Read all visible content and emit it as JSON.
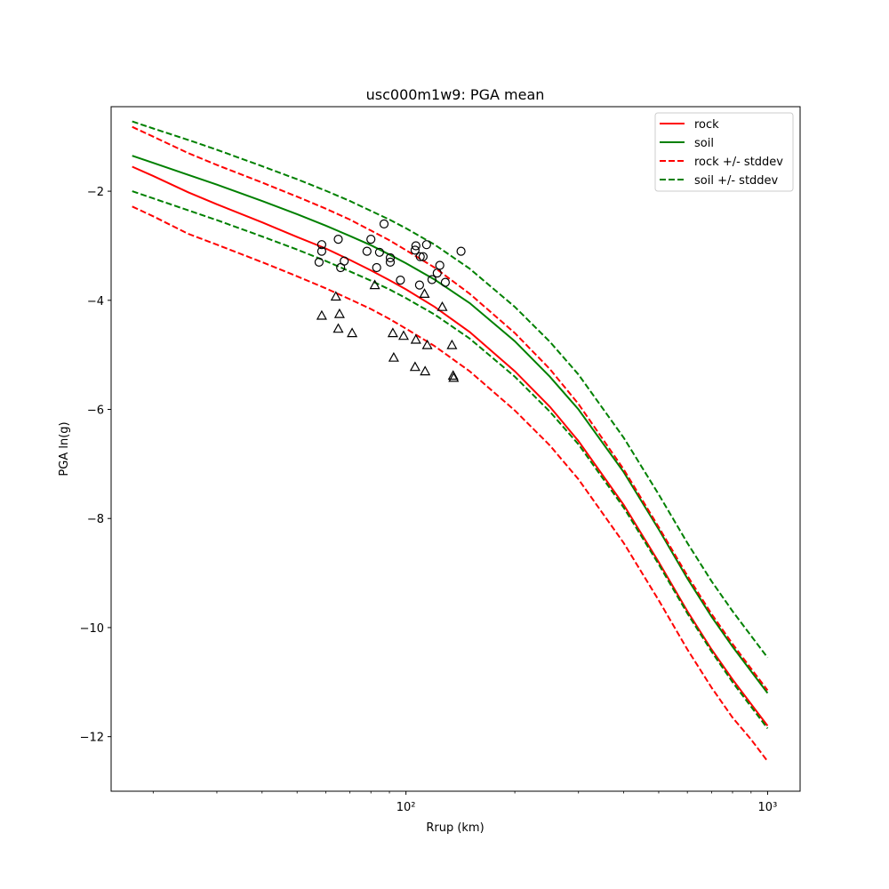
{
  "chart_data": {
    "type": "line",
    "title": "usc000m1w9: PGA mean",
    "xlabel": "Rrup (km)",
    "ylabel": "PGA ln(g)",
    "xscale": "log",
    "xlim": [
      15.3,
      1230
    ],
    "ylim": [
      -13.0,
      -0.45
    ],
    "yticks": [
      -12,
      -10,
      -8,
      -6,
      -4,
      -2
    ],
    "xticks_major": [
      100,
      1000
    ],
    "xtick_labels": [
      "10²",
      "10³"
    ],
    "xticks_minor": [
      20,
      30,
      40,
      50,
      60,
      70,
      80,
      90,
      200,
      300,
      400,
      500,
      600,
      700,
      800,
      900
    ],
    "legend_position": "top-right",
    "colors": {
      "rock": "#ff0000",
      "soil": "#008000",
      "markers": "#000000"
    },
    "curve_x": [
      17.5,
      20,
      25,
      30,
      40,
      50,
      60,
      70,
      80,
      90,
      100,
      120,
      150,
      200,
      250,
      300,
      400,
      500,
      600,
      700,
      800,
      900,
      1000
    ],
    "series": [
      {
        "name": "rock",
        "style": "solid",
        "color": "#ff0000",
        "values": [
          -1.55,
          -1.72,
          -2.02,
          -2.24,
          -2.57,
          -2.84,
          -3.05,
          -3.26,
          -3.45,
          -3.63,
          -3.8,
          -4.12,
          -4.58,
          -5.3,
          -5.95,
          -6.58,
          -7.75,
          -8.8,
          -9.7,
          -10.4,
          -10.95,
          -11.4,
          -11.8
        ]
      },
      {
        "name": "soil",
        "style": "solid",
        "color": "#008000",
        "values": [
          -1.35,
          -1.48,
          -1.7,
          -1.88,
          -2.18,
          -2.42,
          -2.63,
          -2.82,
          -2.99,
          -3.16,
          -3.32,
          -3.62,
          -4.05,
          -4.75,
          -5.4,
          -6.0,
          -7.15,
          -8.2,
          -9.1,
          -9.8,
          -10.35,
          -10.8,
          -11.2
        ]
      },
      {
        "name": "rock +/- stddev",
        "style": "dashed",
        "color": "#ff0000",
        "values": [
          -0.82,
          -1.0,
          -1.3,
          -1.52,
          -1.84,
          -2.1,
          -2.32,
          -2.52,
          -2.72,
          -2.9,
          -3.08,
          -3.4,
          -3.88,
          -4.6,
          -5.26,
          -5.9,
          -7.1,
          -8.16,
          -9.05,
          -9.75,
          -10.3,
          -10.75,
          -11.15
        ]
      },
      {
        "name": "rock +/- stddev (lower)",
        "style": "dashed",
        "color": "#ff0000",
        "values": [
          -2.28,
          -2.46,
          -2.78,
          -2.98,
          -3.3,
          -3.56,
          -3.78,
          -3.98,
          -4.16,
          -4.34,
          -4.52,
          -4.84,
          -5.3,
          -6.02,
          -6.66,
          -7.28,
          -8.45,
          -9.5,
          -10.4,
          -11.1,
          -11.65,
          -12.05,
          -12.45
        ]
      },
      {
        "name": "soil +/- stddev",
        "style": "dashed",
        "color": "#008000",
        "values": [
          -0.72,
          -0.85,
          -1.06,
          -1.24,
          -1.54,
          -1.78,
          -1.99,
          -2.18,
          -2.36,
          -2.52,
          -2.68,
          -2.98,
          -3.42,
          -4.12,
          -4.76,
          -5.36,
          -6.52,
          -7.56,
          -8.45,
          -9.15,
          -9.7,
          -10.15,
          -10.55
        ]
      },
      {
        "name": "soil +/- stddev (lower)",
        "style": "dashed",
        "color": "#008000",
        "values": [
          -2.0,
          -2.13,
          -2.35,
          -2.53,
          -2.83,
          -3.07,
          -3.28,
          -3.47,
          -3.64,
          -3.8,
          -3.96,
          -4.26,
          -4.7,
          -5.4,
          -6.04,
          -6.64,
          -7.8,
          -8.84,
          -9.74,
          -10.44,
          -11.0,
          -11.45,
          -11.85
        ]
      }
    ],
    "legend": [
      {
        "label": "rock",
        "color": "#ff0000",
        "style": "solid"
      },
      {
        "label": "soil",
        "color": "#008000",
        "style": "solid"
      },
      {
        "label": "rock +/- stddev",
        "color": "#ff0000",
        "style": "dashed"
      },
      {
        "label": "soil +/- stddev",
        "color": "#008000",
        "style": "dashed"
      }
    ],
    "soil_observations": {
      "marker": "circle",
      "points": [
        [
          57.5,
          -3.3
        ],
        [
          58.5,
          -2.98
        ],
        [
          58.5,
          -3.1
        ],
        [
          65,
          -2.88
        ],
        [
          66,
          -3.4
        ],
        [
          67.5,
          -3.28
        ],
        [
          78,
          -3.1
        ],
        [
          80,
          -2.88
        ],
        [
          83,
          -3.4
        ],
        [
          84.5,
          -3.12
        ],
        [
          87,
          -2.6
        ],
        [
          90.5,
          -3.22
        ],
        [
          90.5,
          -3.3
        ],
        [
          96.5,
          -3.63
        ],
        [
          106,
          -3.08
        ],
        [
          106.5,
          -3.0
        ],
        [
          109,
          -3.72
        ],
        [
          109.5,
          -3.2
        ],
        [
          111.5,
          -3.2
        ],
        [
          114,
          -2.98
        ],
        [
          118,
          -3.62
        ],
        [
          122,
          -3.5
        ],
        [
          124,
          -3.36
        ],
        [
          128.5,
          -3.67
        ],
        [
          142,
          -3.1
        ]
      ]
    },
    "rock_observations": {
      "marker": "triangle",
      "points": [
        [
          58.5,
          -4.28
        ],
        [
          64,
          -3.93
        ],
        [
          65,
          -4.52
        ],
        [
          65.5,
          -4.25
        ],
        [
          71,
          -4.6
        ],
        [
          82,
          -3.72
        ],
        [
          92,
          -4.6
        ],
        [
          92.5,
          -5.05
        ],
        [
          98.5,
          -4.65
        ],
        [
          106,
          -5.22
        ],
        [
          106.5,
          -4.72
        ],
        [
          112.5,
          -3.88
        ],
        [
          113,
          -5.3
        ],
        [
          114.5,
          -4.82
        ],
        [
          126,
          -4.12
        ],
        [
          134,
          -4.82
        ],
        [
          135,
          -5.38
        ],
        [
          135.5,
          -5.42
        ]
      ]
    }
  }
}
